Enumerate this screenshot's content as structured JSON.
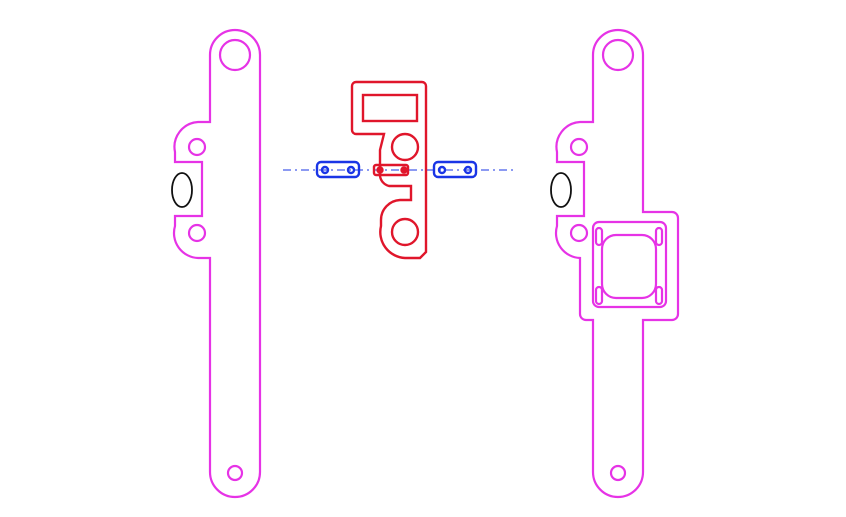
{
  "colors": {
    "background": "#ffffff",
    "side_arm": "#e633e6",
    "center_bracket": "#e0162b",
    "links": "#1a35e6",
    "center_line": "#1a35e6",
    "slot_outline": "#111111"
  },
  "parts": [
    {
      "name": "left-arm",
      "kind": "arm plate with side lug and slot"
    },
    {
      "name": "center-bracket",
      "kind": "hinge bracket"
    },
    {
      "name": "left-link",
      "kind": "two-hole link"
    },
    {
      "name": "right-link",
      "kind": "two-hole link"
    },
    {
      "name": "right-arm",
      "kind": "arm plate with motor mount pad"
    }
  ]
}
